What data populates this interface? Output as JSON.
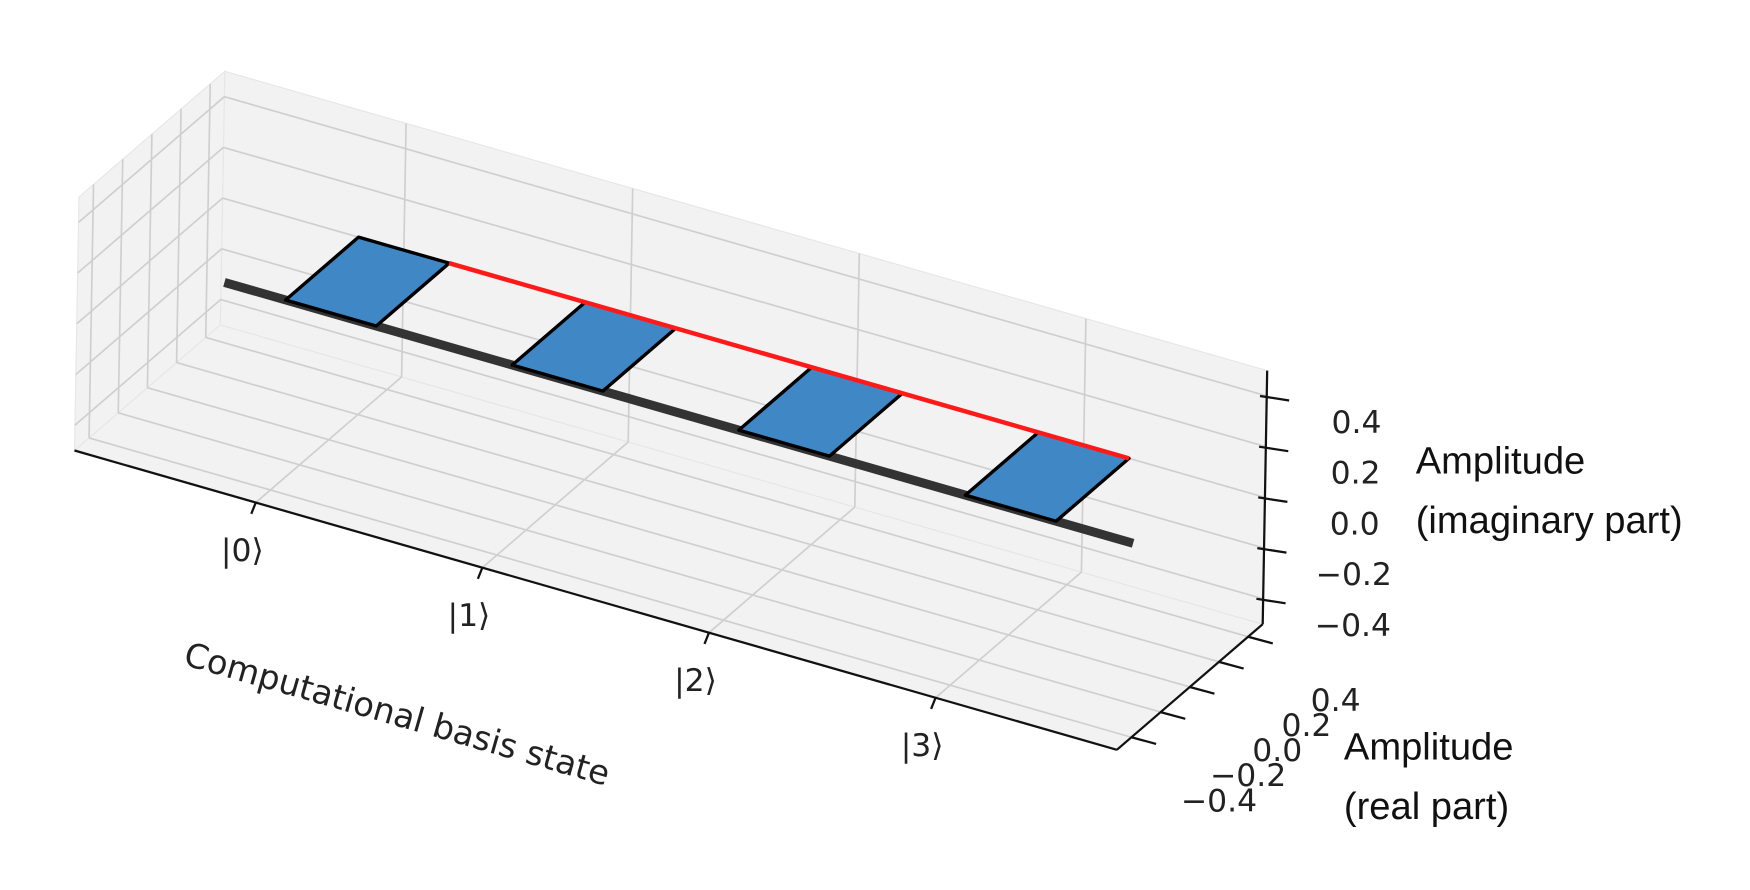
{
  "chart_data": {
    "type": "bar3d",
    "categories": [
      "|0⟩",
      "|1⟩",
      "|2⟩",
      "|3⟩"
    ],
    "real": [
      0.5,
      0.5,
      0.5,
      0.5
    ],
    "imag": [
      0,
      0,
      0,
      0
    ],
    "color": "#3f88c5",
    "line_color": "#ff1a1a",
    "xlabel": "Computational basis state",
    "ylabel": [
      "Amplitude",
      "(real part)"
    ],
    "zlabel": [
      "Amplitude",
      "(imaginary part)"
    ],
    "ylim": [
      -0.5,
      0.5
    ],
    "yticks": [
      {
        "value": -0.4,
        "label": "−0.4"
      },
      {
        "value": -0.2,
        "label": "−0.2"
      },
      {
        "value": 0,
        "label": "0.0"
      },
      0.2,
      0.4
    ],
    "zlim": [
      -0.5,
      0.5
    ],
    "zticks": [
      {
        "value": -0.4,
        "label": "−0.4"
      },
      {
        "value": -0.2,
        "label": "−0.2"
      },
      {
        "value": 0,
        "label": "0.0"
      },
      0.2,
      0.4
    ],
    "grid": true
  }
}
